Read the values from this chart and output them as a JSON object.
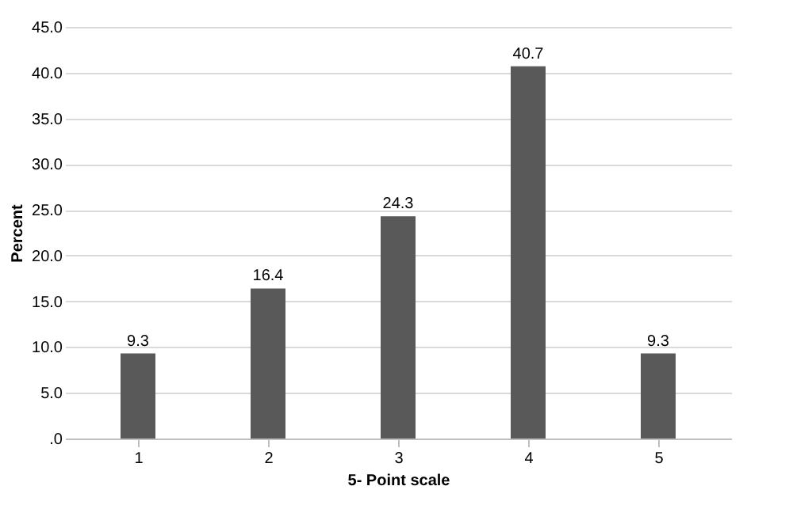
{
  "chart_data": {
    "type": "bar",
    "xlabel": "5- Point scale",
    "ylabel": "Percent",
    "categories": [
      "1",
      "2",
      "3",
      "4",
      "5"
    ],
    "values": [
      9.3,
      16.4,
      24.3,
      40.7,
      9.3
    ],
    "color": "#595959",
    "ylim": [
      0,
      45
    ],
    "yticks": [
      {
        "value": 0,
        "label": ".0"
      },
      {
        "value": 5,
        "label": "5.0"
      },
      {
        "value": 10,
        "label": "10.0"
      },
      {
        "value": 15,
        "label": "15.0"
      },
      {
        "value": 20,
        "label": "20.0"
      },
      {
        "value": 25,
        "label": "25.0"
      },
      {
        "value": 30,
        "label": "30.0"
      },
      {
        "value": 35,
        "label": "35.0"
      },
      {
        "value": 40,
        "label": "40.0"
      },
      {
        "value": 45,
        "label": "45.0"
      }
    ],
    "grid": "y",
    "data_labels": true
  }
}
